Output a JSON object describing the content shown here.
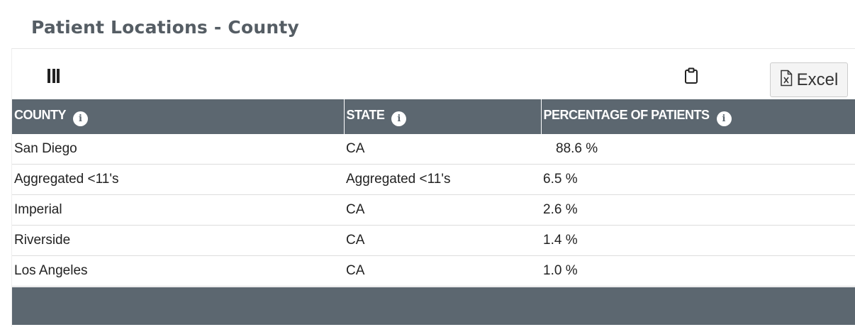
{
  "page": {
    "title": "Patient Locations - County"
  },
  "toolbar": {
    "columns_icon": "columns-icon",
    "clipboard_icon": "clipboard-icon",
    "excel_icon": "excel-file-icon",
    "excel_label": "Excel"
  },
  "table": {
    "columns": [
      {
        "label": "COUNTY",
        "info_icon": "info-icon"
      },
      {
        "label": "STATE",
        "info_icon": "info-icon"
      },
      {
        "label": "PERCENTAGE OF PATIENTS",
        "info_icon": "info-icon"
      }
    ],
    "rows": [
      {
        "county": "San Diego",
        "state": "CA",
        "percentage": "88.6 %"
      },
      {
        "county": "Aggregated <11's",
        "state": "Aggregated <11's",
        "percentage": "6.5 %"
      },
      {
        "county": "Imperial",
        "state": "CA",
        "percentage": "2.6 %"
      },
      {
        "county": "Riverside",
        "state": "CA",
        "percentage": "1.4 %"
      },
      {
        "county": "Los Angeles",
        "state": "CA",
        "percentage": "1.0 %"
      }
    ]
  },
  "colors": {
    "header_background": "#5c6770",
    "title_text": "#555d64",
    "header_text": "#ffffff"
  }
}
